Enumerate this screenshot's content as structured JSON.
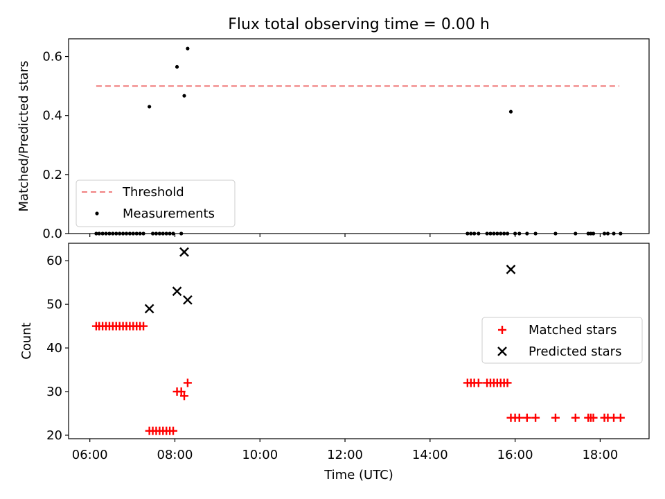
{
  "chart_data": [
    {
      "type": "scatter",
      "title": "Flux total observing time = 0.00 h",
      "xlabel": "",
      "ylabel": "Matched/Predicted stars",
      "xlim": [
        5.5,
        19.15
      ],
      "ylim": [
        0.0,
        0.66
      ],
      "yticks": [
        0.0,
        0.2,
        0.4,
        0.6
      ],
      "ytick_labels": [
        "0.0",
        "0.2",
        "0.4",
        "0.6"
      ],
      "legend_position": "lower-left",
      "threshold": {
        "name": "Threshold",
        "value": 0.5,
        "x_range": [
          6.15,
          18.45
        ],
        "color": "#f08080",
        "style": "dashed"
      },
      "series": [
        {
          "name": "Measurements",
          "marker": "dot",
          "color": "#000000",
          "x": [
            6.15,
            6.22,
            6.3,
            6.38,
            6.46,
            6.54,
            6.62,
            6.7,
            6.78,
            6.86,
            6.94,
            7.02,
            7.1,
            7.18,
            7.26,
            7.4,
            7.48,
            7.56,
            7.64,
            7.72,
            7.8,
            7.88,
            7.96,
            8.05,
            8.15,
            8.22,
            8.3,
            14.88,
            14.96,
            15.04,
            15.14,
            15.34,
            15.42,
            15.5,
            15.58,
            15.66,
            15.74,
            15.82,
            15.9,
            16.0,
            16.1,
            16.28,
            16.48,
            16.95,
            17.42,
            17.72,
            17.78,
            17.84,
            18.1,
            18.18,
            18.32,
            18.48
          ],
          "y": [
            0,
            0,
            0,
            0,
            0,
            0,
            0,
            0,
            0,
            0,
            0,
            0,
            0,
            0,
            0,
            0.43,
            0,
            0,
            0,
            0,
            0,
            0,
            0,
            0.565,
            0,
            0.467,
            0.627,
            0,
            0,
            0,
            0,
            0,
            0,
            0,
            0,
            0,
            0,
            0,
            0.413,
            0,
            0,
            0,
            0,
            0,
            0,
            0,
            0,
            0,
            0,
            0,
            0,
            0
          ]
        }
      ]
    },
    {
      "type": "scatter",
      "title": "",
      "xlabel": "Time (UTC)",
      "ylabel": "Count",
      "xlim": [
        5.5,
        19.15
      ],
      "ylim": [
        19.2,
        64.0
      ],
      "yticks": [
        20,
        30,
        40,
        50,
        60
      ],
      "ytick_labels": [
        "20",
        "30",
        "40",
        "50",
        "60"
      ],
      "xticks": [
        6,
        8,
        10,
        12,
        14,
        16,
        18
      ],
      "xtick_labels": [
        "06:00",
        "08:00",
        "10:00",
        "12:00",
        "14:00",
        "16:00",
        "18:00"
      ],
      "legend_position": "center-right",
      "series": [
        {
          "name": "Matched stars",
          "marker": "plus",
          "color": "#ff0000",
          "x": [
            6.15,
            6.22,
            6.3,
            6.38,
            6.46,
            6.54,
            6.62,
            6.7,
            6.78,
            6.86,
            6.94,
            7.02,
            7.1,
            7.18,
            7.26,
            7.4,
            7.48,
            7.56,
            7.64,
            7.72,
            7.8,
            7.88,
            7.96,
            8.05,
            8.15,
            8.22,
            8.3,
            14.88,
            14.96,
            15.04,
            15.14,
            15.34,
            15.42,
            15.5,
            15.58,
            15.66,
            15.74,
            15.82,
            15.9,
            16.0,
            16.1,
            16.28,
            16.48,
            16.95,
            17.42,
            17.72,
            17.78,
            17.84,
            18.1,
            18.18,
            18.32,
            18.48
          ],
          "y": [
            45,
            45,
            45,
            45,
            45,
            45,
            45,
            45,
            45,
            45,
            45,
            45,
            45,
            45,
            45,
            21,
            21,
            21,
            21,
            21,
            21,
            21,
            21,
            30,
            30,
            29,
            32,
            32,
            32,
            32,
            32,
            32,
            32,
            32,
            32,
            32,
            32,
            32,
            24,
            24,
            24,
            24,
            24,
            24,
            24,
            24,
            24,
            24,
            24,
            24,
            24,
            24
          ]
        },
        {
          "name": "Predicted stars",
          "marker": "x",
          "color": "#000000",
          "x": [
            7.4,
            8.05,
            8.22,
            8.3,
            15.9
          ],
          "y": [
            49,
            53,
            62,
            51,
            58
          ]
        }
      ]
    }
  ]
}
